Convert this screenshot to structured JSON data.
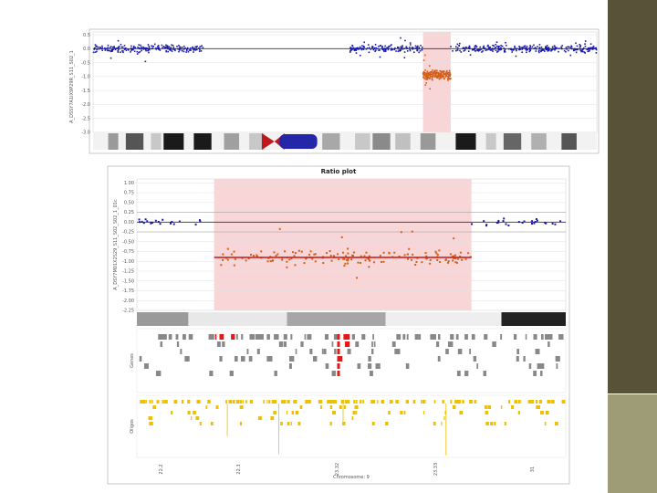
{
  "colors": {
    "slide_dark": "#585238",
    "slide_light": "#9e9b77",
    "normal_points": "#1a1aa8",
    "deleted_points": "#d2601a",
    "highlight": "#f8d6d8",
    "segment_line": "#d42020",
    "genes": "#888888",
    "genes_highlight": "#e01a1a",
    "oligos": "#f0c000"
  },
  "chart_data": [
    {
      "type": "scatter",
      "title": "",
      "ylabel": "A_DSSY7A1IX9P29R_S11_S02_1",
      "yticks": [
        "0.5",
        "0.0",
        "-0.5",
        "-1.0",
        "-1.5",
        "-2.0",
        "-2.5",
        "-3.0"
      ],
      "ylim": [
        -3.0,
        0.6
      ],
      "series": [
        {
          "x_range": [
            0.0,
            0.22
          ],
          "y_mean": 0.0,
          "y_spread": 0.18
        },
        {
          "x_range": [
            0.51,
            0.655
          ],
          "y_mean": 0.0,
          "y_spread": 0.18
        },
        {
          "x_range": [
            0.655,
            0.71
          ],
          "y_mean": -0.95,
          "y_spread": 0.25,
          "deleted": true
        },
        {
          "x_range": [
            0.71,
            1.0
          ],
          "y_mean": 0.0,
          "y_spread": 0.18
        }
      ],
      "highlight_x": [
        0.655,
        0.71
      ]
    },
    {
      "type": "scatter",
      "title": "Ratio plot",
      "ylabel": "A_DSY7M01X2S29_S11_S02_S02_1_01c",
      "yticks": [
        "1.00",
        "0.75",
        "0.50",
        "0.25",
        "0.00",
        "-0.25",
        "-0.50",
        "-0.75",
        "-1.00",
        "-1.25",
        "-1.50",
        "-1.75",
        "-2.00",
        "-2.25"
      ],
      "ylim": [
        -2.25,
        1.1
      ],
      "segment": {
        "x_range": [
          0.18,
          0.78
        ],
        "y": -0.9
      },
      "series": [
        {
          "x_range": [
            0.0,
            0.18
          ],
          "y_mean": 0.0,
          "y_spread": 0.12
        },
        {
          "x_range": [
            0.18,
            0.78
          ],
          "y_mean": -0.9,
          "y_spread": 0.3,
          "deleted": true
        },
        {
          "x_range": [
            0.78,
            1.0
          ],
          "y_mean": 0.0,
          "y_spread": 0.12
        }
      ],
      "highlight_x": [
        0.18,
        0.78
      ],
      "track_labels": [
        "Genes",
        "Oligos"
      ],
      "xlabel": "Chromosome: 9",
      "xticks": [
        "22.2",
        "22.3",
        "23.32",
        "23.33",
        "31"
      ]
    }
  ]
}
